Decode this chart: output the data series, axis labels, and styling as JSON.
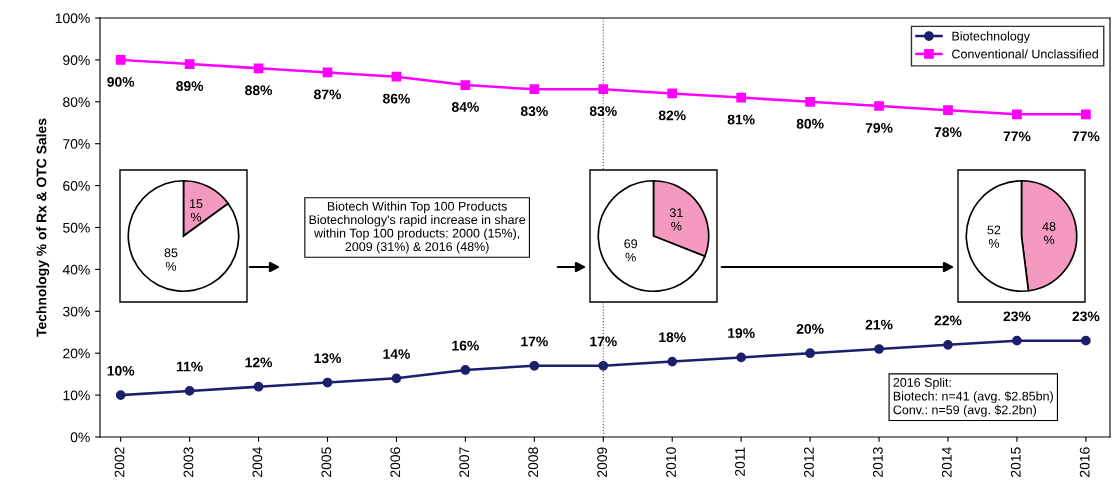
{
  "chart_data": [
    {
      "type": "line",
      "ylabel": "Technology % of Rx & OTC Sales",
      "x": [
        2002,
        2003,
        2004,
        2005,
        2006,
        2007,
        2008,
        2009,
        2010,
        2011,
        2012,
        2013,
        2014,
        2015,
        2016
      ],
      "xlim": [
        2001.7,
        2016.35
      ],
      "xticks": [
        {
          "value": 2002,
          "label": "2002"
        },
        {
          "value": 2003,
          "label": "2003"
        },
        {
          "value": 2004,
          "label": "2004"
        },
        {
          "value": 2005,
          "label": "2005"
        },
        {
          "value": 2006,
          "label": "2006"
        },
        {
          "value": 2007,
          "label": "2007"
        },
        {
          "value": 2008,
          "label": "2008"
        },
        {
          "value": 2009,
          "label": "2009"
        },
        {
          "value": 2010,
          "label": "2010"
        },
        {
          "value": 2011,
          "label": "2011"
        },
        {
          "value": 2012,
          "label": "2012"
        },
        {
          "value": 2013,
          "label": "2013"
        },
        {
          "value": 2014,
          "label": "2014"
        },
        {
          "value": 2015,
          "label": "2015"
        },
        {
          "value": 2016,
          "label": "2016"
        }
      ],
      "ylim": [
        0,
        100
      ],
      "yticks": [
        {
          "value": 0,
          "label": "0%"
        },
        {
          "value": 10,
          "label": "10%"
        },
        {
          "value": 20,
          "label": "20%"
        },
        {
          "value": 30,
          "label": "30%"
        },
        {
          "value": 40,
          "label": "40%"
        },
        {
          "value": 50,
          "label": "50%"
        },
        {
          "value": 60,
          "label": "60%"
        },
        {
          "value": 70,
          "label": "70%"
        },
        {
          "value": 80,
          "label": "80%"
        },
        {
          "value": 90,
          "label": "90%"
        },
        {
          "value": 100,
          "label": "100%"
        }
      ],
      "series": [
        {
          "name": "Biotechnology",
          "color": "#1c1f6b",
          "marker": "circle",
          "values": [
            10,
            11,
            12,
            13,
            14,
            16,
            17,
            17,
            18,
            19,
            20,
            21,
            22,
            23,
            23
          ],
          "value_labels": [
            "10%",
            "11%",
            "12%",
            "13%",
            "14%",
            "16%",
            "17%",
            "17%",
            "18%",
            "19%",
            "20%",
            "21%",
            "22%",
            "23%",
            "23%"
          ]
        },
        {
          "name": "Conventional/ Unclassified",
          "color": "#ff00ff",
          "marker": "square",
          "values": [
            90,
            89,
            88,
            87,
            86,
            84,
            83,
            83,
            82,
            81,
            80,
            79,
            78,
            77,
            77
          ],
          "value_labels": [
            "90%",
            "89%",
            "88%",
            "87%",
            "86%",
            "84%",
            "83%",
            "83%",
            "82%",
            "81%",
            "80%",
            "79%",
            "78%",
            "77%",
            "77%"
          ]
        }
      ],
      "ref_lines": [
        {
          "axis": "x",
          "value": 2009,
          "color": "#555555",
          "line_style": "dotted"
        }
      ],
      "annotations": [
        "Biotech Within Top 100 Products\nBiotechnology's rapid increase in share\nwithin Top 100 products: 2000 (15%),\n2009 (31%) & 2016 (48%)",
        "2016 Split:\nBiotech: n=41 (avg. $2.85bn)\nConv.: n=59 (avg. $2.2bn)"
      ],
      "legend": "top right",
      "grid": false
    },
    {
      "type": "pie",
      "categories": [
        null,
        null
      ],
      "values": [
        15,
        85
      ],
      "colors": [
        "#f49ac1",
        "#ffffff"
      ],
      "value_labels": [
        "15\n%",
        "85\n%"
      ]
    },
    {
      "type": "pie",
      "categories": [
        null,
        null
      ],
      "values": [
        31,
        69
      ],
      "colors": [
        "#f49ac1",
        "#ffffff"
      ],
      "value_labels": [
        "31\n%",
        "69\n%"
      ]
    },
    {
      "type": "pie",
      "categories": [
        null,
        null
      ],
      "values": [
        48,
        52
      ],
      "colors": [
        "#f49ac1",
        "#ffffff"
      ],
      "value_labels": [
        "48\n%",
        "52\n%"
      ]
    }
  ]
}
